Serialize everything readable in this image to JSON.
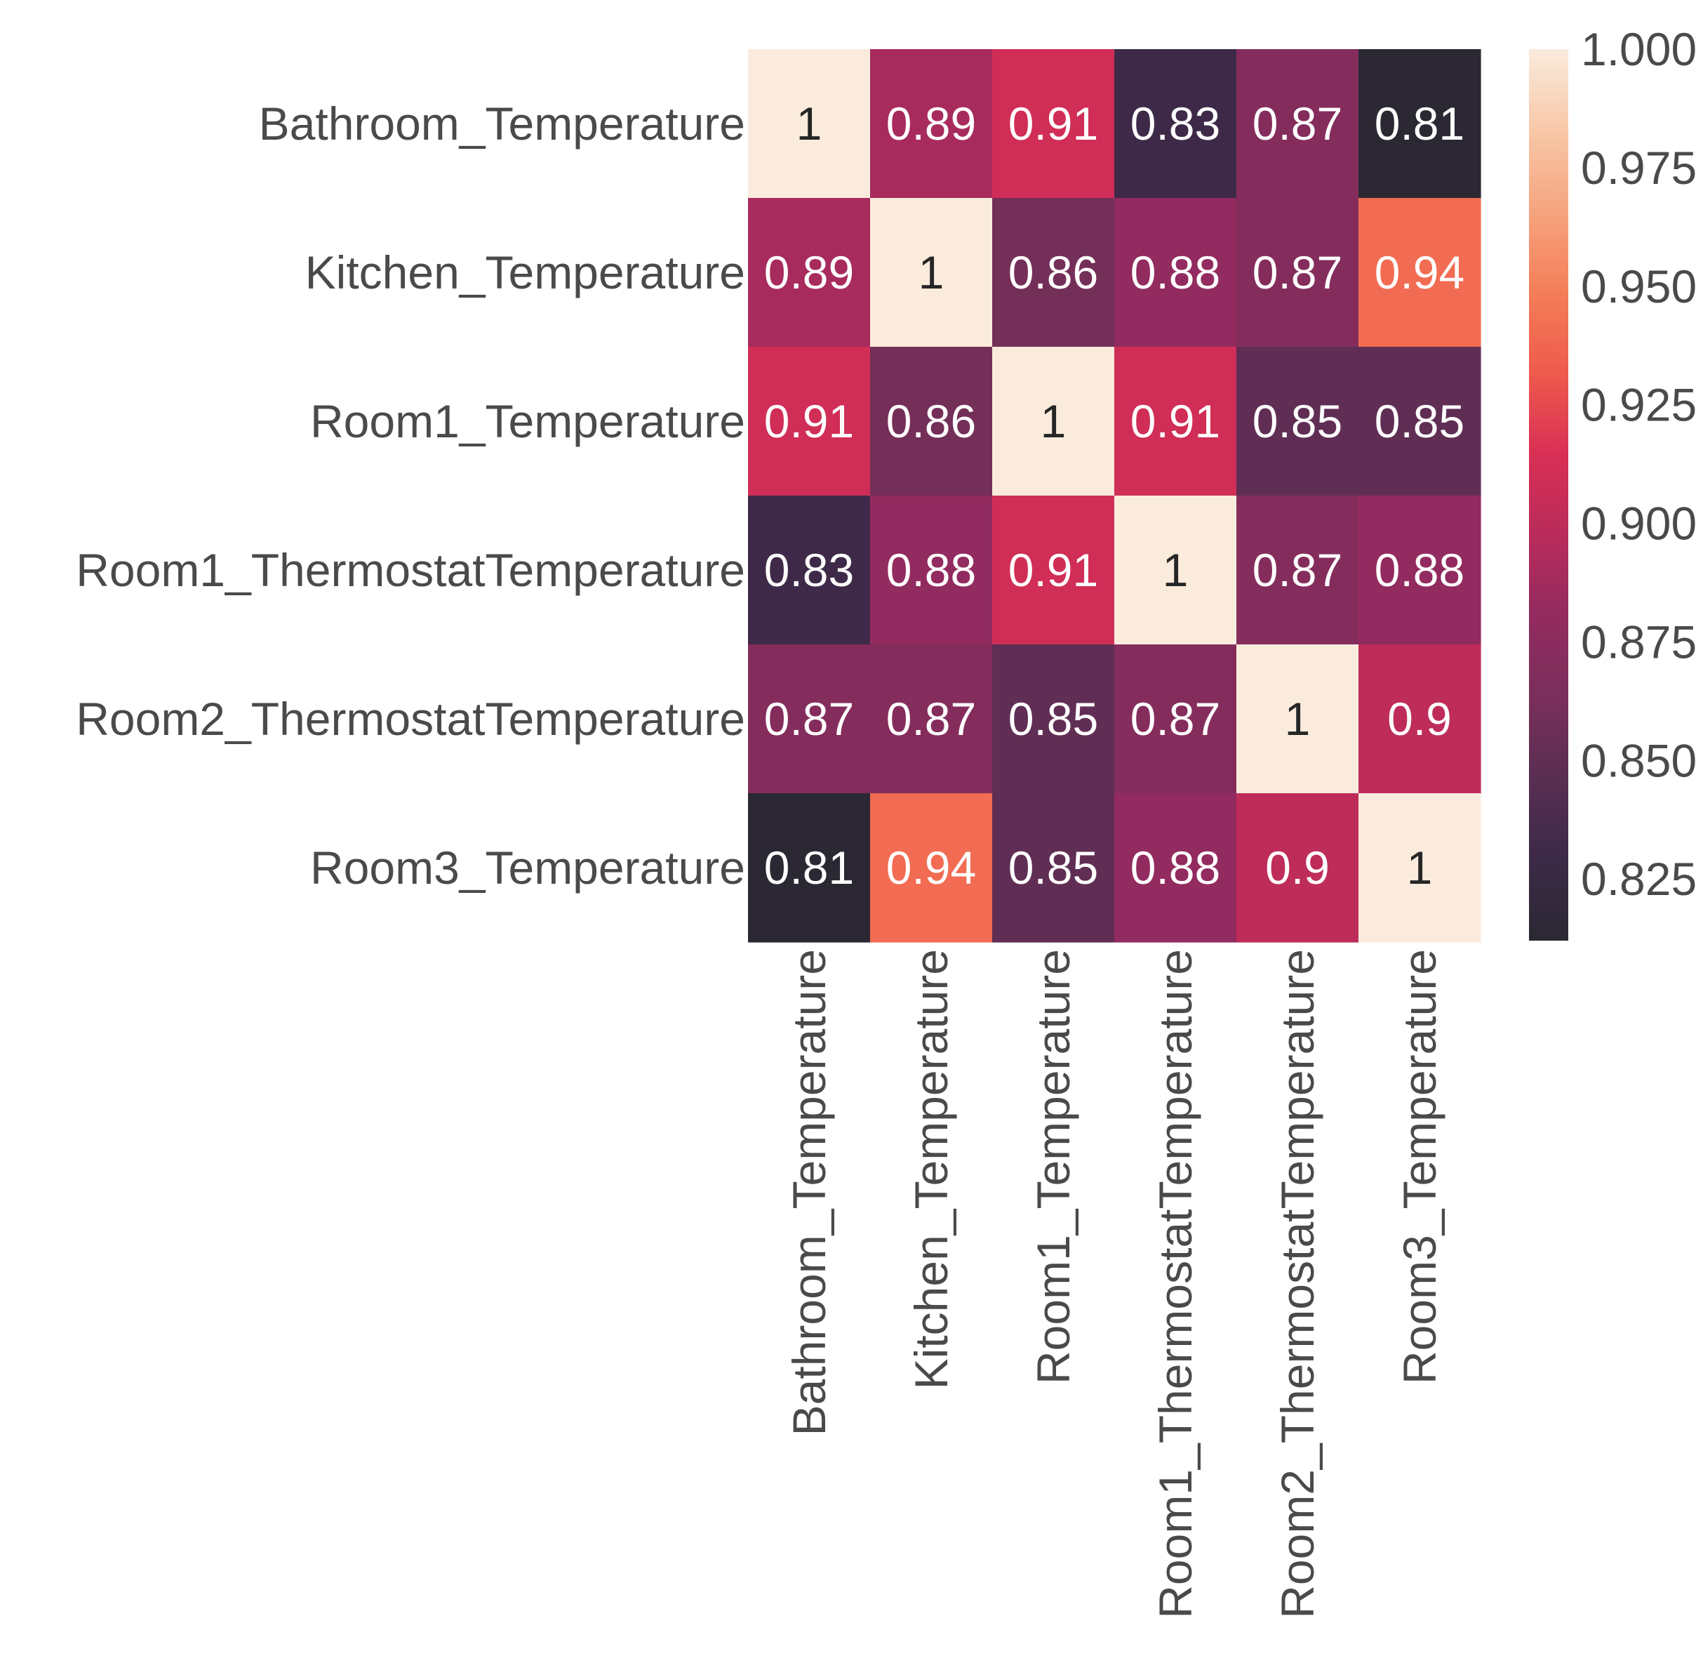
{
  "chart_data": {
    "type": "heatmap",
    "title": "",
    "xlabel": "",
    "ylabel": "",
    "row_labels": [
      "Bathroom_Temperature",
      "Kitchen_Temperature",
      "Room1_Temperature",
      "Room1_ThermostatTemperature",
      "Room2_ThermostatTemperature",
      "Room3_Temperature"
    ],
    "col_labels": [
      "Bathroom_Temperature",
      "Kitchen_Temperature",
      "Room1_Temperature",
      "Room1_ThermostatTemperature",
      "Room2_ThermostatTemperature",
      "Room3_Temperature"
    ],
    "values": [
      [
        1.0,
        0.89,
        0.91,
        0.83,
        0.87,
        0.81
      ],
      [
        0.89,
        1.0,
        0.86,
        0.88,
        0.87,
        0.94
      ],
      [
        0.91,
        0.86,
        1.0,
        0.91,
        0.85,
        0.85
      ],
      [
        0.83,
        0.88,
        0.91,
        1.0,
        0.87,
        0.88
      ],
      [
        0.87,
        0.87,
        0.85,
        0.87,
        1.0,
        0.9
      ],
      [
        0.81,
        0.94,
        0.85,
        0.88,
        0.9,
        1.0
      ]
    ],
    "annotations": [
      [
        "1",
        "0.89",
        "0.91",
        "0.83",
        "0.87",
        "0.81"
      ],
      [
        "0.89",
        "1",
        "0.86",
        "0.88",
        "0.87",
        "0.94"
      ],
      [
        "0.91",
        "0.86",
        "1",
        "0.91",
        "0.85",
        "0.85"
      ],
      [
        "0.83",
        "0.88",
        "0.91",
        "1",
        "0.87",
        "0.88"
      ],
      [
        "0.87",
        "0.87",
        "0.85",
        "0.87",
        "1",
        "0.9"
      ],
      [
        "0.81",
        "0.94",
        "0.85",
        "0.88",
        "0.9",
        "1"
      ]
    ],
    "colorbar": {
      "vmin": 0.812,
      "vmax": 1.0,
      "ticks": [
        1.0,
        0.975,
        0.95,
        0.925,
        0.9,
        0.875,
        0.85,
        0.825
      ],
      "tick_labels": [
        "1.000",
        "0.975",
        "0.950",
        "0.925",
        "0.900",
        "0.875",
        "0.850",
        "0.825"
      ]
    },
    "colormap": "rocket",
    "colormap_stops": [
      "#2b2833",
      "#3c2a47",
      "#592e52",
      "#7a2f5b",
      "#932b5f",
      "#b92b5b",
      "#d92f55",
      "#ee5a4c",
      "#f47e58",
      "#f6a47f",
      "#f8c8a8",
      "#faebdd"
    ],
    "colors": {
      "label_text": "#4a4a4a",
      "cell_text_dark_bg": "#ffffff",
      "cell_text_light_bg": "#262626"
    }
  }
}
